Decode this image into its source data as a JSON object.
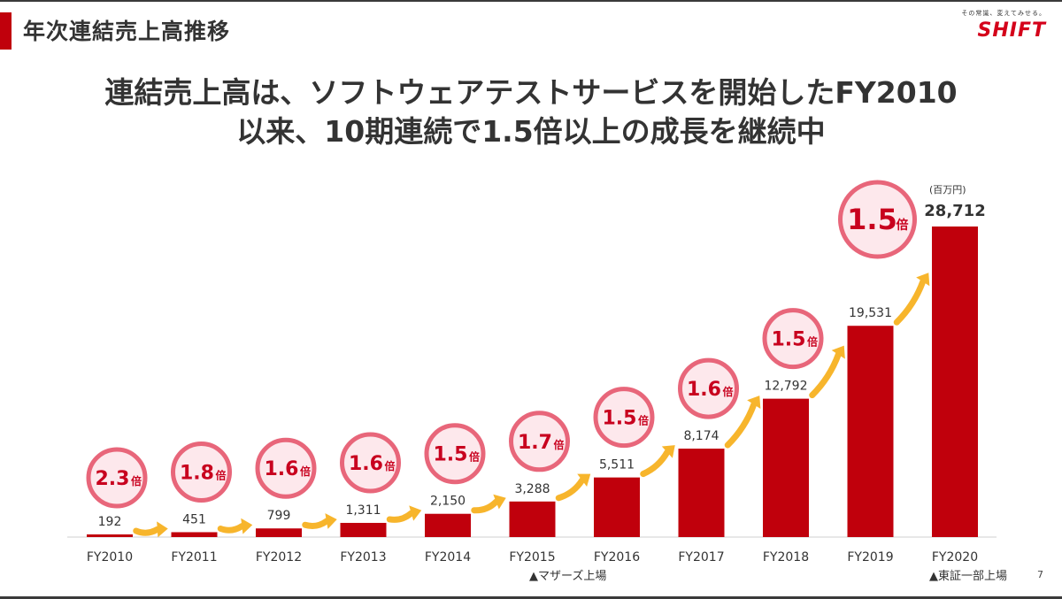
{
  "header": {
    "section_title": "年次連結売上高推移",
    "logo_tagline": "その常識、変えてみせる。",
    "logo_text": "SHIFT",
    "headline_line1": "連結売上高は、ソフトウェアテストサービスを開始したFY2010",
    "headline_line2": "以来、10期連続で1.5倍以上の成長を継続中"
  },
  "chart_data": {
    "type": "bar",
    "unit_label": "(百万円)",
    "categories": [
      "FY2010",
      "FY2011",
      "FY2012",
      "FY2013",
      "FY2014",
      "FY2015",
      "FY2016",
      "FY2017",
      "FY2018",
      "FY2019",
      "FY2020"
    ],
    "values": [
      192,
      451,
      799,
      1311,
      2150,
      3288,
      5511,
      8174,
      12792,
      19531,
      28712
    ],
    "value_labels": [
      "192",
      "451",
      "799",
      "1,311",
      "2,150",
      "3,288",
      "5,511",
      "8,174",
      "12,792",
      "19,531",
      "28,712"
    ],
    "growth_multipliers": [
      "2.3",
      "1.8",
      "1.6",
      "1.6",
      "1.5",
      "1.7",
      "1.5",
      "1.6",
      "1.5",
      "1.5"
    ],
    "growth_suffix": "倍",
    "annotations": [
      "▲マザーズ上場",
      "▲東証一部上場"
    ],
    "colors": {
      "bar": "#c0000c",
      "arrow": "#f7b52c",
      "circle_fill": "#fde8ec",
      "circle_stroke": "#e8667a",
      "multiplier_text": "#c8001e"
    }
  },
  "footer": {
    "page_number": "7"
  }
}
